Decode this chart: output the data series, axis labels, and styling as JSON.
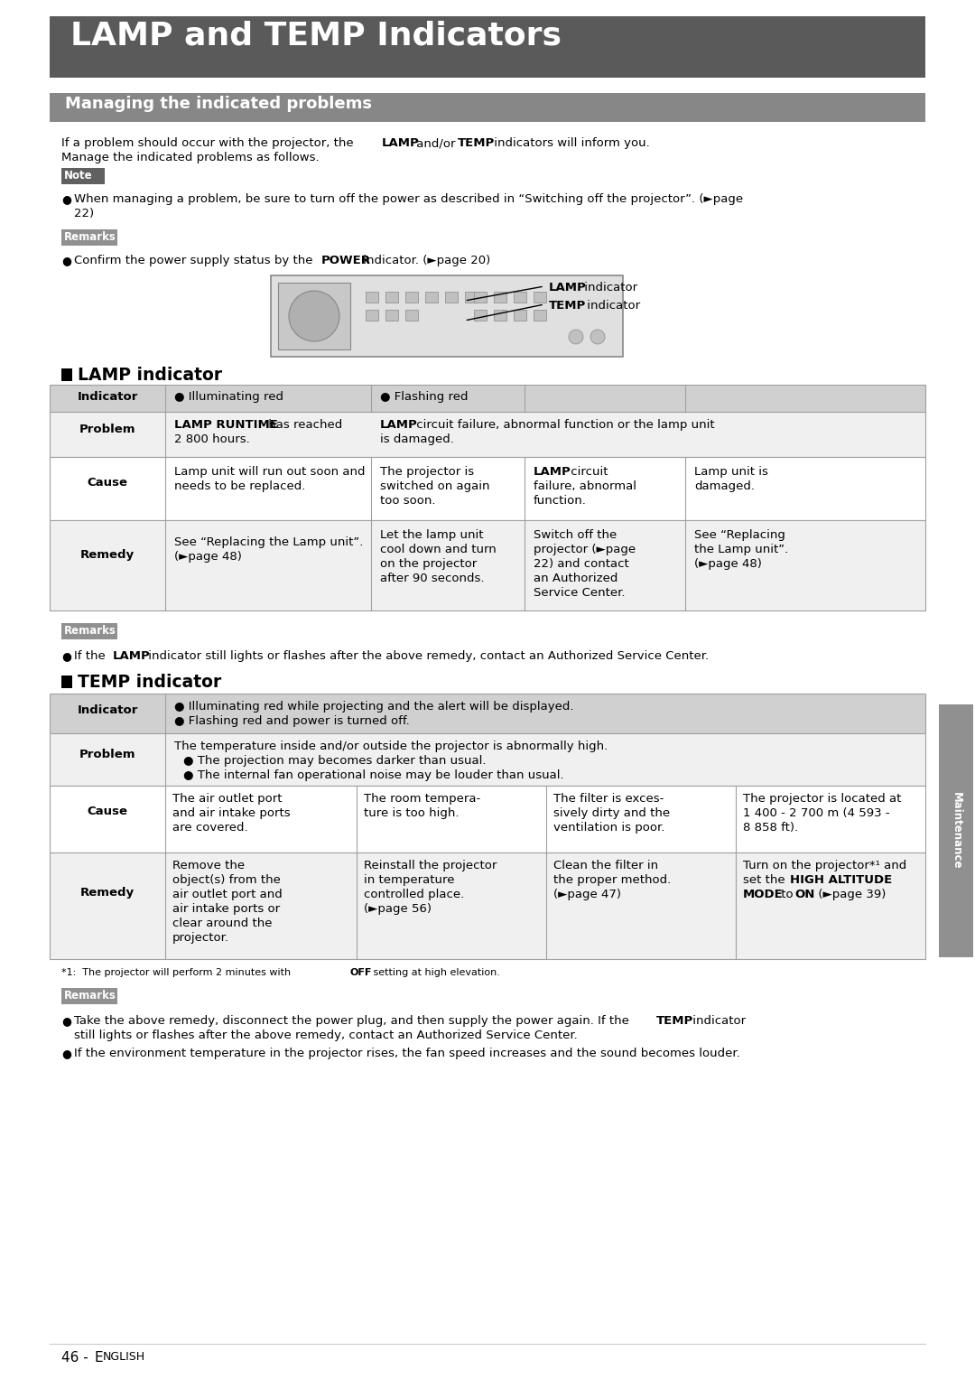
{
  "title": "LAMP and TEMP Indicators",
  "title_bg": "#5a5a5a",
  "title_color": "#ffffff",
  "section1_title": "Managing the indicated problems",
  "section1_bg": "#878787",
  "section1_color": "#ffffff",
  "body_bg": "#ffffff",
  "note_bg": "#606060",
  "remarks_bg": "#909090",
  "table_header_bg": "#d0d0d0",
  "table_white_bg": "#ffffff",
  "table_gray_bg": "#f0f0f0",
  "table_border": "#a0a0a0",
  "sidebar_bg": "#909090",
  "page_label": "46 - ENGLISH"
}
